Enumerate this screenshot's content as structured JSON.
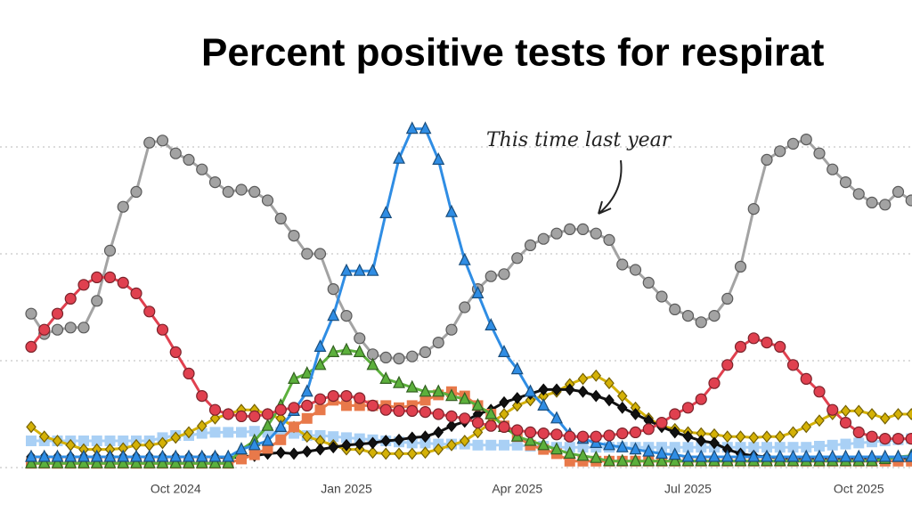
{
  "chart_data": {
    "type": "line",
    "title": "Percent positive tests for respirat",
    "annotation": "This time last year",
    "categories": [
      null,
      null,
      null,
      null,
      null,
      null,
      null,
      null,
      null,
      null,
      null,
      "Oct 2024",
      null,
      null,
      null,
      null,
      null,
      null,
      null,
      null,
      null,
      null,
      null,
      null,
      "Jan 2025",
      null,
      null,
      null,
      null,
      null,
      null,
      null,
      null,
      null,
      null,
      null,
      null,
      "Apr 2025",
      null,
      null,
      null,
      null,
      null,
      null,
      null,
      null,
      null,
      null,
      null,
      null,
      "Jul 2025",
      null,
      null,
      null,
      null,
      null,
      null,
      null,
      null,
      null,
      null,
      null,
      null,
      "Oct 2025",
      null,
      null,
      null,
      null
    ],
    "ylim": [
      0,
      35
    ],
    "yticks": [
      0,
      10,
      20,
      30
    ],
    "grid": true,
    "series": [
      {
        "color": "#a3a3a3",
        "marker": "circle",
        "values": [
          14.4,
          12.5,
          12.9,
          13.1,
          13.1,
          15.6,
          20.3,
          24.4,
          25.8,
          30.4,
          30.6,
          29.4,
          28.8,
          27.9,
          26.7,
          25.8,
          26.0,
          25.8,
          25.0,
          23.3,
          21.7,
          20.0,
          20.0,
          16.7,
          14.2,
          12.1,
          10.6,
          10.3,
          10.2,
          10.4,
          10.8,
          11.7,
          12.9,
          15.0,
          16.7,
          17.9,
          18.1,
          19.6,
          20.8,
          21.4,
          21.9,
          22.3,
          22.3,
          21.9,
          21.3,
          19.0,
          18.5,
          17.3,
          16.0,
          14.8,
          14.2,
          13.6,
          14.2,
          15.8,
          18.8,
          24.2,
          28.8,
          29.6,
          30.3,
          30.7,
          29.4,
          27.9,
          26.7,
          25.6,
          24.8,
          24.6,
          25.8,
          25.0
        ]
      },
      {
        "color": "#a9d0f5",
        "marker": "square",
        "values": [
          2.5,
          2.5,
          2.5,
          2.5,
          2.5,
          2.5,
          2.5,
          2.5,
          2.5,
          2.5,
          2.8,
          3.0,
          3.0,
          3.2,
          3.3,
          3.3,
          3.3,
          3.4,
          3.3,
          3.3,
          3.2,
          3.0,
          3.0,
          2.9,
          2.8,
          2.7,
          2.6,
          2.5,
          2.4,
          2.3,
          2.3,
          2.2,
          2.2,
          2.2,
          2.1,
          2.1,
          2.1,
          2.1,
          2.0,
          2.0,
          1.9,
          1.9,
          1.9,
          1.9,
          1.9,
          1.9,
          1.9,
          1.9,
          1.9,
          1.9,
          1.9,
          1.9,
          1.9,
          1.9,
          1.9,
          1.9,
          1.9,
          1.9,
          1.9,
          1.9,
          2.0,
          2.1,
          2.2,
          2.3,
          2.4,
          2.5,
          2.6,
          2.7
        ]
      },
      {
        "color": "#d4b106",
        "marker": "diamond",
        "values": [
          3.8,
          2.9,
          2.5,
          2.1,
          1.7,
          1.7,
          1.7,
          1.8,
          2.1,
          2.1,
          2.3,
          2.8,
          3.3,
          3.9,
          4.6,
          5.0,
          5.4,
          5.4,
          5.0,
          4.6,
          3.8,
          2.9,
          2.5,
          2.1,
          1.7,
          1.7,
          1.4,
          1.3,
          1.3,
          1.3,
          1.4,
          1.7,
          2.1,
          2.5,
          3.3,
          4.2,
          5.0,
          5.8,
          6.3,
          6.7,
          7.1,
          7.8,
          8.3,
          8.6,
          7.9,
          6.7,
          5.6,
          4.6,
          3.9,
          3.6,
          3.3,
          3.2,
          3.1,
          2.9,
          2.9,
          2.8,
          2.9,
          2.9,
          3.3,
          3.8,
          4.4,
          5.0,
          5.3,
          5.3,
          5.0,
          4.6,
          5.0,
          5.0
        ]
      },
      {
        "color": "#111111",
        "marker": "diamond",
        "values": [
          1.0,
          1.0,
          1.0,
          1.0,
          1.0,
          1.0,
          1.0,
          1.0,
          1.0,
          1.0,
          1.0,
          1.0,
          1.0,
          1.0,
          1.0,
          0.9,
          1.0,
          1.1,
          1.3,
          1.4,
          1.3,
          1.5,
          1.7,
          1.9,
          2.1,
          2.2,
          2.3,
          2.5,
          2.6,
          2.8,
          2.9,
          3.3,
          3.9,
          4.3,
          5.0,
          5.4,
          6.1,
          6.5,
          6.9,
          7.3,
          7.3,
          7.3,
          7.1,
          6.7,
          6.3,
          5.6,
          5.0,
          4.4,
          3.8,
          3.3,
          2.9,
          2.5,
          2.3,
          1.7,
          1.3,
          1.1,
          1.0,
          0.9,
          0.9,
          0.9,
          0.9,
          0.9,
          0.9,
          0.9,
          0.9,
          0.9,
          0.9,
          0.9
        ]
      },
      {
        "color": "#e8794a",
        "marker": "square",
        "values": [
          0.4,
          0.4,
          0.4,
          0.4,
          0.4,
          0.4,
          0.4,
          0.4,
          0.4,
          0.4,
          0.4,
          0.4,
          0.4,
          0.4,
          0.4,
          0.4,
          0.8,
          1.2,
          1.8,
          2.6,
          3.8,
          4.6,
          5.4,
          6.3,
          5.8,
          5.8,
          5.8,
          5.8,
          5.6,
          5.8,
          6.3,
          6.8,
          7.1,
          6.7,
          5.8,
          5.0,
          3.9,
          2.9,
          2.1,
          1.7,
          1.3,
          0.6,
          0.6,
          0.6,
          0.6,
          0.6,
          0.6,
          0.6,
          0.6,
          0.6,
          0.6,
          0.6,
          0.6,
          0.6,
          0.6,
          0.6,
          0.6,
          0.6,
          0.6,
          0.6,
          0.6,
          0.6,
          0.6,
          0.6,
          0.6,
          0.6,
          0.6,
          0.6
        ]
      },
      {
        "color": "#5cb03c",
        "marker": "triangle",
        "values": [
          0.4,
          0.4,
          0.4,
          0.4,
          0.4,
          0.4,
          0.4,
          0.4,
          0.4,
          0.4,
          0.4,
          0.4,
          0.4,
          0.4,
          0.4,
          0.4,
          1.7,
          2.5,
          3.9,
          5.8,
          8.3,
          8.8,
          9.6,
          10.8,
          11.0,
          10.8,
          9.6,
          8.3,
          7.9,
          7.5,
          7.1,
          7.1,
          6.7,
          6.4,
          5.8,
          5.0,
          3.8,
          2.9,
          2.5,
          2.1,
          1.7,
          1.3,
          1.1,
          0.9,
          0.6,
          0.6,
          0.6,
          0.6,
          0.6,
          0.6,
          0.6,
          0.6,
          0.6,
          0.6,
          0.6,
          0.6,
          0.6,
          0.6,
          0.6,
          0.6,
          0.6,
          0.6,
          0.6,
          0.6,
          0.6,
          0.8,
          1.0,
          1.1
        ]
      },
      {
        "color": "#2f8de4",
        "marker": "triangle",
        "values": [
          1.0,
          1.0,
          1.0,
          1.0,
          1.0,
          1.0,
          1.0,
          1.0,
          1.0,
          1.0,
          1.0,
          1.0,
          1.0,
          1.0,
          1.0,
          1.0,
          1.7,
          2.1,
          2.5,
          3.8,
          5.3,
          7.1,
          11.3,
          14.2,
          18.4,
          18.4,
          18.4,
          23.8,
          28.9,
          31.7,
          31.7,
          28.8,
          23.9,
          19.4,
          16.3,
          13.3,
          10.8,
          9.2,
          7.1,
          5.8,
          4.6,
          3.1,
          2.7,
          2.3,
          2.1,
          1.9,
          1.7,
          1.5,
          1.3,
          1.2,
          1.0,
          1.0,
          1.0,
          1.0,
          1.0,
          1.0,
          1.0,
          1.0,
          1.0,
          1.0,
          1.0,
          1.0,
          1.0,
          1.0,
          1.0,
          1.0,
          1.0,
          1.0
        ]
      },
      {
        "color": "#e0404f",
        "marker": "circle",
        "values": [
          11.3,
          12.9,
          14.4,
          15.8,
          17.1,
          17.8,
          17.8,
          17.3,
          16.3,
          14.6,
          12.9,
          10.8,
          8.8,
          6.7,
          5.4,
          5.0,
          4.8,
          4.8,
          5.0,
          5.4,
          5.6,
          5.8,
          6.4,
          6.7,
          6.7,
          6.5,
          5.8,
          5.4,
          5.3,
          5.3,
          5.2,
          5.0,
          4.8,
          4.6,
          4.2,
          3.9,
          3.8,
          3.5,
          3.3,
          3.2,
          3.1,
          2.9,
          2.9,
          2.9,
          3.0,
          3.2,
          3.3,
          3.6,
          4.2,
          5.0,
          5.6,
          6.4,
          7.9,
          9.6,
          11.3,
          12.1,
          11.7,
          11.3,
          9.6,
          8.3,
          7.1,
          5.4,
          4.2,
          3.3,
          2.9,
          2.7,
          2.7,
          2.7
        ]
      }
    ]
  }
}
